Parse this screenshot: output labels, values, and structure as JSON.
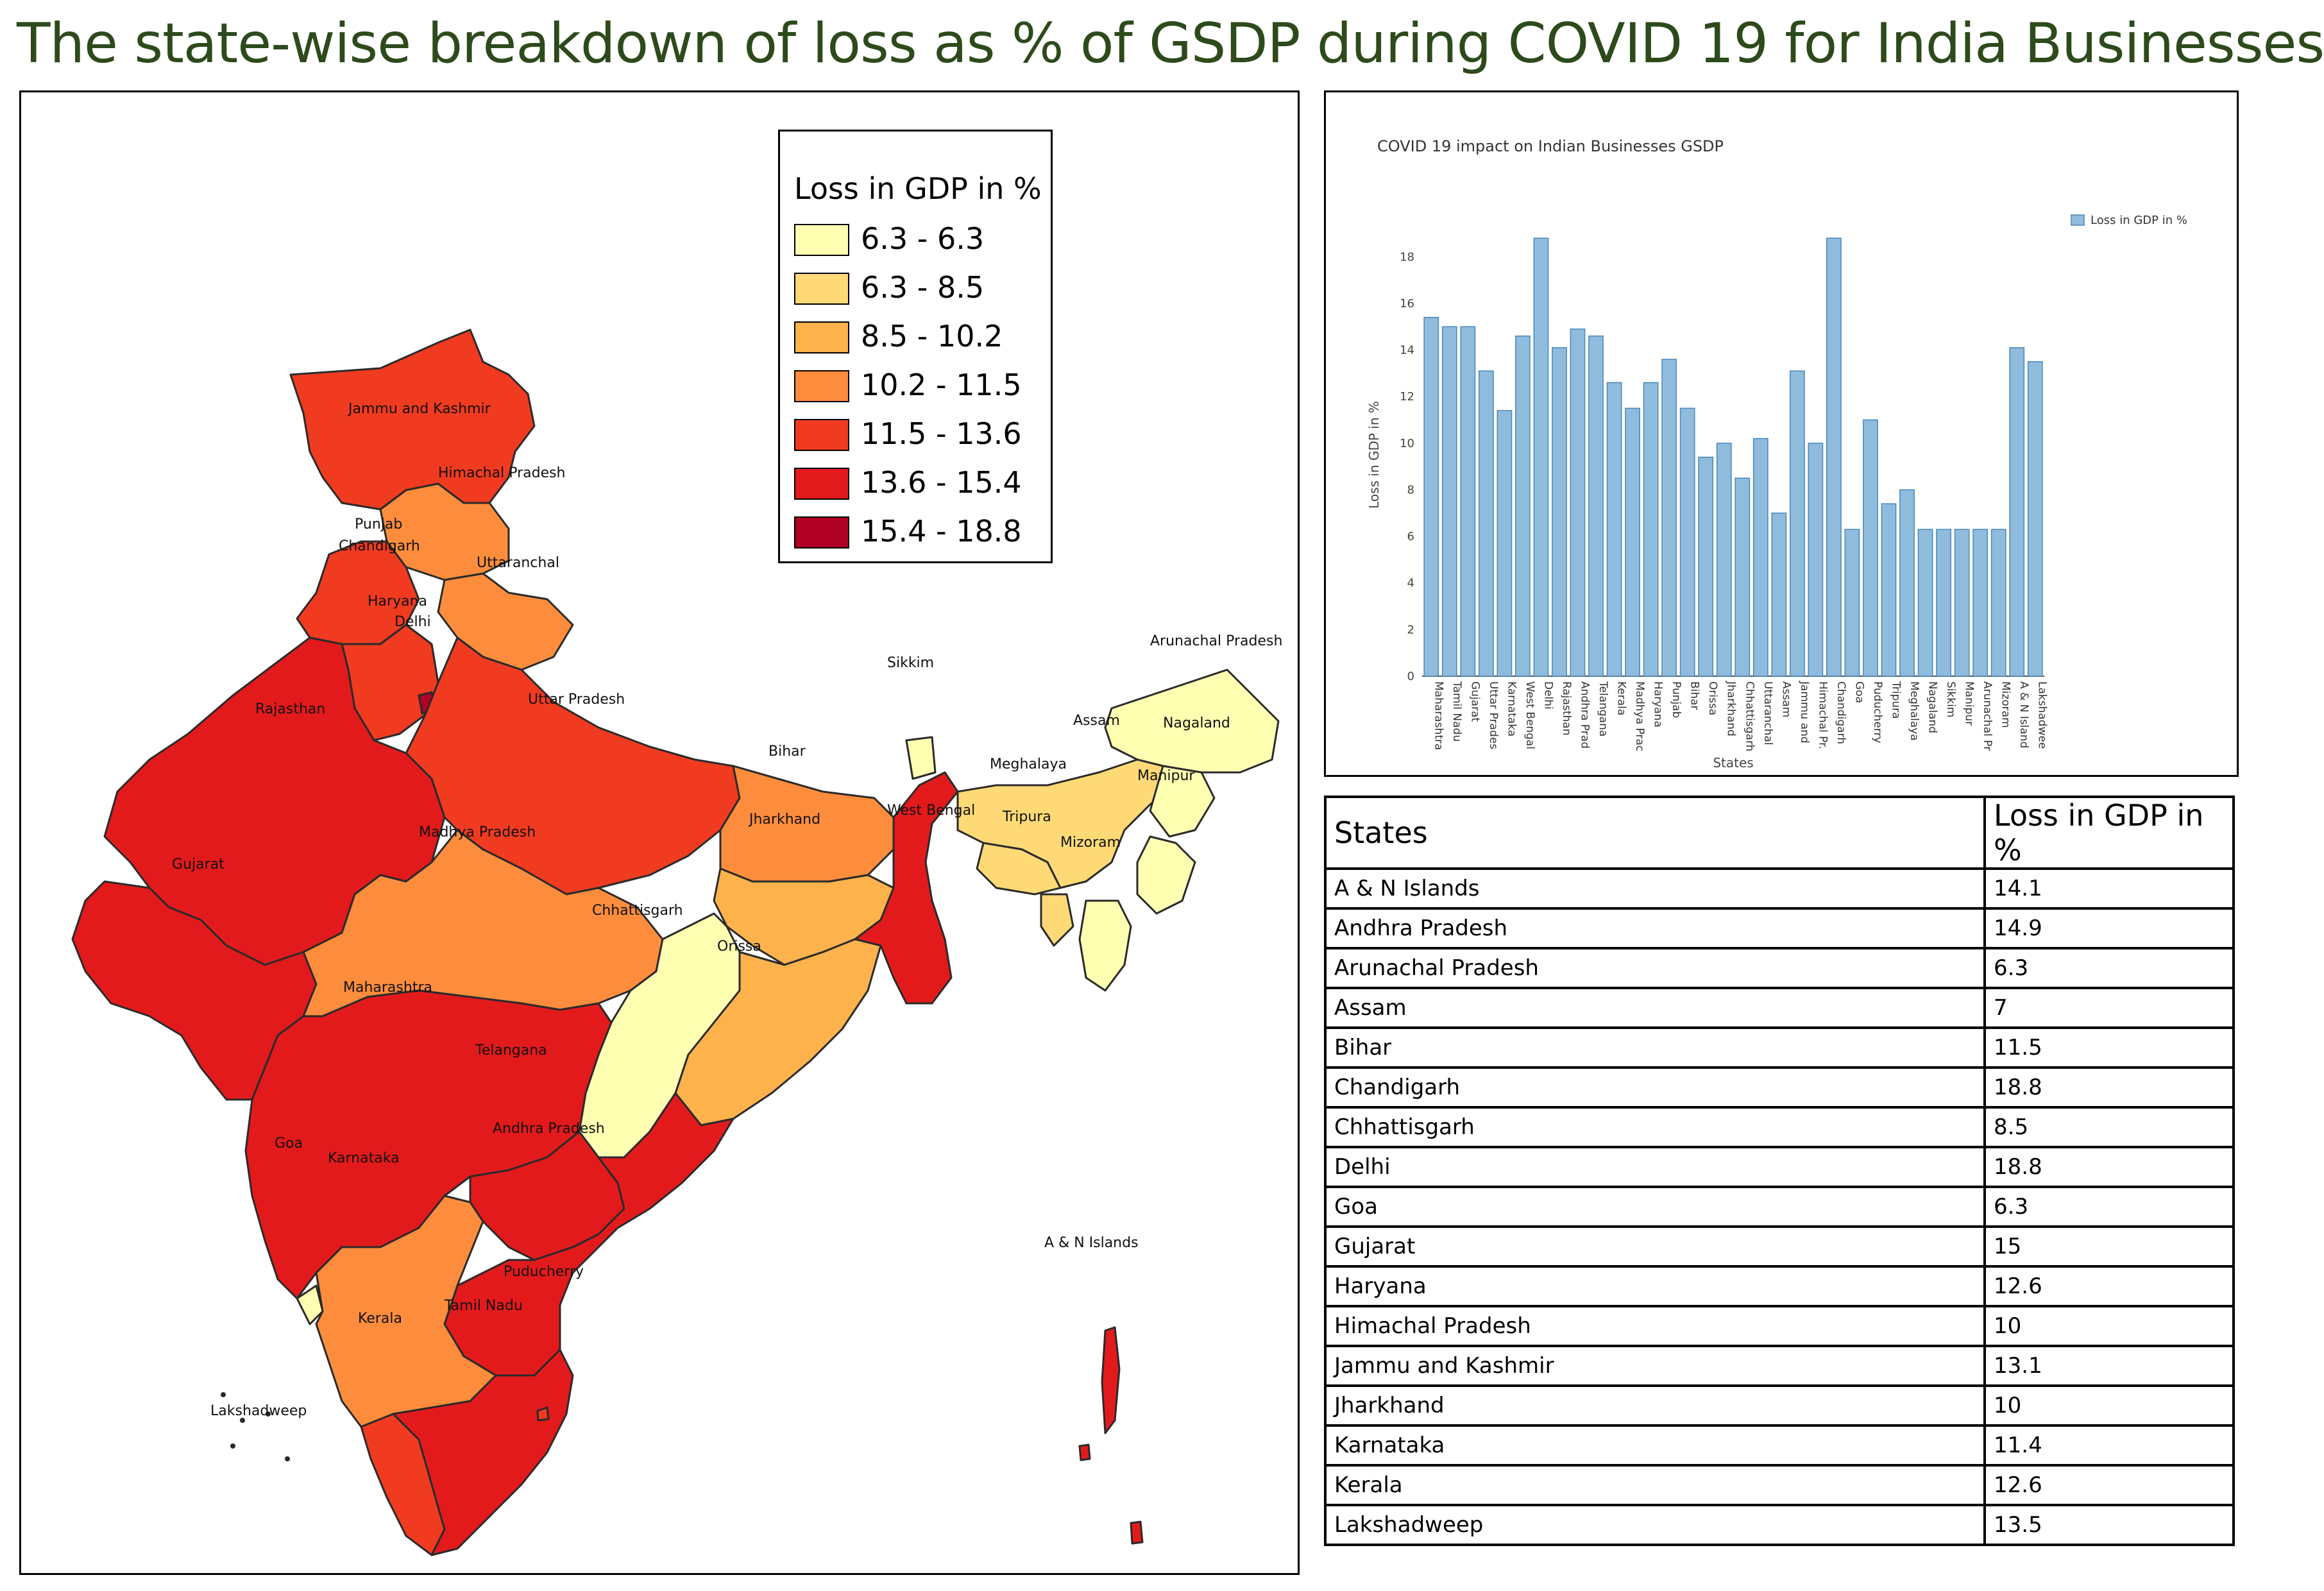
{
  "title": "The state-wise breakdown of loss as % of GSDP during COVID 19 for India Businesses",
  "legend": {
    "title": "Loss in GDP in %",
    "items": [
      {
        "label": "6.3 - 6.3",
        "color": "#ffffb2"
      },
      {
        "label": "6.3 - 8.5",
        "color": "#fed976"
      },
      {
        "label": "8.5 - 10.2",
        "color": "#feb24c"
      },
      {
        "label": "10.2 - 11.5",
        "color": "#fd8d3c"
      },
      {
        "label": "11.5 - 13.6",
        "color": "#f03b20"
      },
      {
        "label": "13.6 - 15.4",
        "color": "#e31a1c"
      },
      {
        "label": "15.4 - 18.8",
        "color": "#b10026"
      }
    ]
  },
  "map_labels": [
    "Jammu and Kashmir",
    "Himachal Pradesh",
    "Punjab",
    "Chandigarh",
    "Uttaranchal",
    "Haryana",
    "Delhi",
    "Rajasthan",
    "Uttar Pradesh",
    "Sikkim",
    "Arunachal Pradesh",
    "Assam",
    "Nagaland",
    "Bihar",
    "Meghalaya",
    "Manipur",
    "Jharkhand",
    "West Bengal",
    "Tripura",
    "Mizoram",
    "Madhya Pradesh",
    "Gujarat",
    "Chhattisgarh",
    "Orissa",
    "Maharashtra",
    "Telangana",
    "Andhra Pradesh",
    "Goa",
    "Karnataka",
    "A & N Islands",
    "Puducherry",
    "Tamil Nadu",
    "Kerala",
    "Lakshadweep"
  ],
  "chart_data": {
    "type": "bar",
    "title": "COVID 19 impact on Indian Businesses GSDP",
    "xlabel": "States",
    "ylabel": "Loss in GDP in %",
    "legend": "Loss in GDP in %",
    "legend_position": "top-right",
    "ylim": [
      0,
      19
    ],
    "yticks": [
      0,
      2,
      4,
      6,
      8,
      10,
      12,
      14,
      16,
      18
    ],
    "bar_color": "#8fbcdd",
    "categories": [
      "Maharashtra",
      "Tamil Nadu",
      "Gujarat",
      "Uttar Prades",
      "Karnataka",
      "West Bengal",
      "Delhi",
      "Rajasthan",
      "Andhra Prad",
      "Telangana",
      "Kerala",
      "Madhya Prac",
      "Haryana",
      "Punjab",
      "Bihar",
      "Orissa",
      "Jharkhand",
      "Chhattisgarh",
      "Uttaranchal",
      "Assam",
      "Jammu and",
      "Himachal Pr.",
      "Chandigarh",
      "Goa",
      "Puducherry",
      "Tripura",
      "Meghalaya",
      "Nagaland",
      "Sikkim",
      "Manipur",
      "Arunachal Pr",
      "Mizoram",
      "A & N Island",
      "Lakshadwee"
    ],
    "values": [
      15.4,
      15,
      15,
      13.1,
      11.4,
      14.6,
      18.8,
      14.1,
      14.9,
      14.6,
      12.6,
      11.5,
      12.6,
      13.6,
      11.5,
      9.4,
      10,
      8.5,
      10.2,
      7,
      13.1,
      10,
      18.8,
      6.3,
      11,
      7.4,
      8,
      6.3,
      6.3,
      6.3,
      6.3,
      6.3,
      14.1,
      13.5
    ]
  },
  "table": {
    "headers": [
      "States",
      "Loss in GDP in %"
    ],
    "rows": [
      [
        "A & N Islands",
        "14.1"
      ],
      [
        "Andhra Pradesh",
        "14.9"
      ],
      [
        "Arunachal Pradesh",
        "6.3"
      ],
      [
        "Assam",
        "7"
      ],
      [
        "Bihar",
        "11.5"
      ],
      [
        "Chandigarh",
        "18.8"
      ],
      [
        "Chhattisgarh",
        "8.5"
      ],
      [
        "Delhi",
        "18.8"
      ],
      [
        "Goa",
        "6.3"
      ],
      [
        "Gujarat",
        "15"
      ],
      [
        "Haryana",
        "12.6"
      ],
      [
        "Himachal Pradesh",
        "10"
      ],
      [
        "Jammu and Kashmir",
        "13.1"
      ],
      [
        "Jharkhand",
        "10"
      ],
      [
        "Karnataka",
        "11.4"
      ],
      [
        "Kerala",
        "12.6"
      ],
      [
        "Lakshadweep",
        "13.5"
      ]
    ]
  }
}
